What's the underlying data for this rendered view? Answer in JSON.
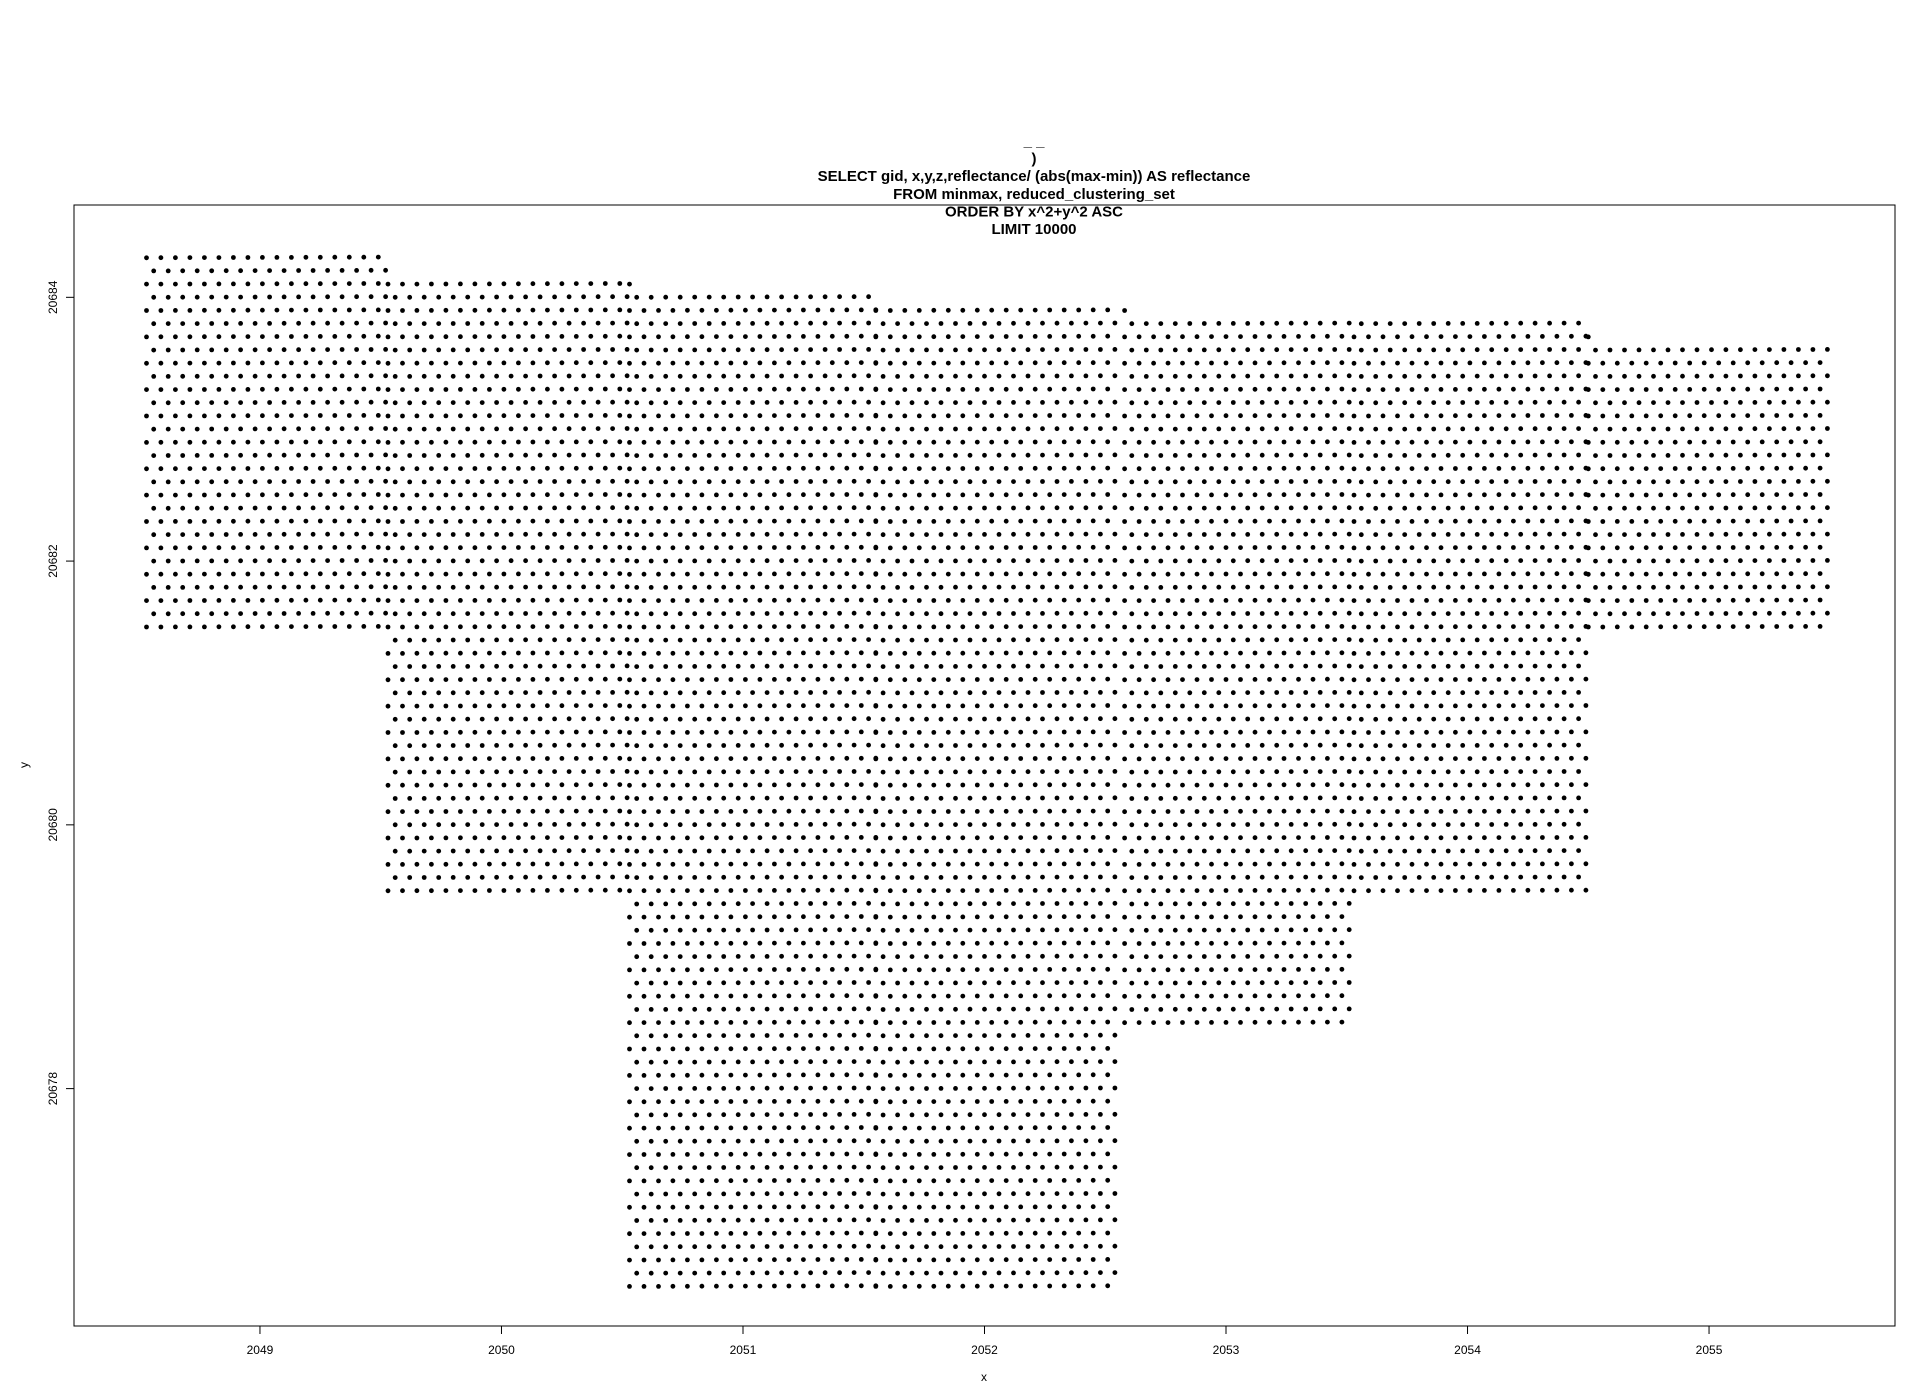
{
  "chart_data": {
    "type": "scatter",
    "title_lines": [
      "_ _",
      ")",
      "SELECT gid, x,y,z,reflectance/ (abs(max-min)) AS reflectance",
      "FROM minmax, reduced_clustering_set",
      "ORDER BY x^2+y^2 ASC",
      "LIMIT 10000"
    ],
    "xlabel": "x",
    "ylabel": "y",
    "xlim": [
      2048.23,
      2055.77
    ],
    "ylim": [
      20676.2,
      20684.7
    ],
    "x_ticks": [
      2049,
      2050,
      2051,
      2052,
      2053,
      2054,
      2055
    ],
    "y_ticks": [
      20678,
      20680,
      20682,
      20684
    ],
    "x_tick_labels": [
      "2049",
      "2050",
      "2051",
      "2052",
      "2053",
      "2054",
      "2055"
    ],
    "y_tick_labels": [
      "20678",
      "20680",
      "20682",
      "20684"
    ],
    "marker_color": "#000000",
    "grid": false,
    "regions": [
      {
        "x_range": [
          2048.53,
          2049.53
        ],
        "y_range": [
          20681.5,
          20684.4
        ],
        "tilt": 0.05
      },
      {
        "x_range": [
          2049.53,
          2050.53
        ],
        "y_range": [
          20679.5,
          20684.2
        ],
        "tilt": 0.05
      },
      {
        "x_range": [
          2050.53,
          2051.55
        ],
        "y_range": [
          20676.5,
          20684.1
        ],
        "tilt": 0.05
      },
      {
        "x_range": [
          2051.55,
          2052.55
        ],
        "y_range": [
          20676.5,
          20684.0
        ],
        "tilt": 0.05
      },
      {
        "x_range": [
          2052.58,
          2053.53
        ],
        "y_range": [
          20678.5,
          20683.9
        ],
        "tilt": 0.05
      },
      {
        "x_range": [
          2053.53,
          2054.5
        ],
        "y_range": [
          20679.5,
          20683.85
        ],
        "tilt": 0.05
      },
      {
        "x_range": [
          2054.5,
          2055.5
        ],
        "y_range": [
          20681.5,
          20683.7
        ],
        "tilt": 0.05
      }
    ]
  }
}
